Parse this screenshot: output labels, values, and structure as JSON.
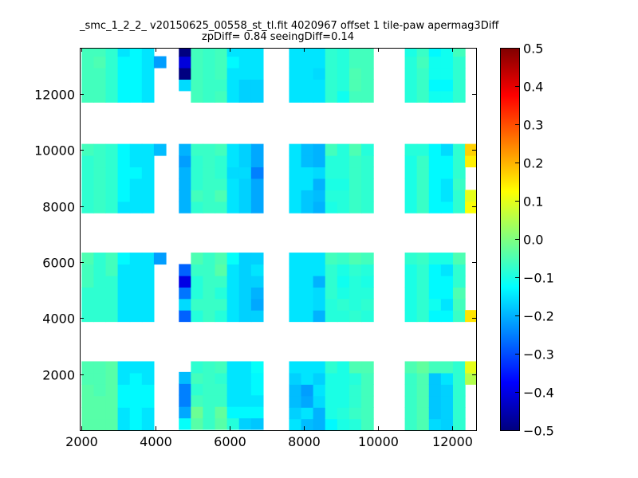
{
  "chart_data": {
    "type": "heatmap",
    "title": "_smc_1_2_2_ v20150625_00558_st_tl.fit 4020967 offset 1 tile-paw apermag3Diff",
    "subtitle": "zpDiff= 0.84 seeingDiff=0.14",
    "xlabel": "",
    "ylabel": "",
    "xlim": [
      1950,
      12650
    ],
    "ylim": [
      0,
      13650
    ],
    "xticks": [
      2000,
      4000,
      6000,
      8000,
      10000,
      12000
    ],
    "yticks": [
      2000,
      4000,
      6000,
      8000,
      10000,
      12000
    ],
    "grid": false,
    "colormap": "jet",
    "colorbar": {
      "vmin": -0.5,
      "vmax": 0.5,
      "ticks": [
        -0.5,
        -0.4,
        -0.3,
        -0.2,
        -0.1,
        0.0,
        0.1,
        0.2,
        0.3,
        0.4,
        0.5
      ],
      "tick_labels": [
        "−0.5",
        "−0.4",
        "−0.3",
        "−0.2",
        "−0.1",
        "0.0",
        "0.1",
        "0.2",
        "0.3",
        "0.4",
        "0.5"
      ]
    },
    "cell_size": [
      325,
      410
    ],
    "column_x": [
      2000,
      2325,
      2650,
      2975,
      3300,
      3625,
      3950,
      4625,
      4950,
      5275,
      5600,
      5925,
      6250,
      6575,
      7600,
      7925,
      8250,
      8575,
      8900,
      9225,
      9550,
      10725,
      11050,
      11375,
      11700,
      12025,
      12350
    ],
    "row_y": [
      [
        0,
        410,
        820,
        1230,
        1640,
        2050,
        3880,
        4290,
        4700,
        5110,
        5520,
        5930,
        7760,
        8170,
        8580,
        8990,
        9400,
        9810,
        11710,
        12120,
        12530,
        12940,
        13350
      ],
      [
        0,
        410,
        820,
        1230,
        1640,
        2050,
        3880,
        4290,
        4700,
        5110,
        5520,
        5930,
        7760,
        8170,
        8580,
        8990,
        9400,
        9810,
        11710,
        12120,
        12530,
        12940,
        13350
      ],
      [
        0,
        410,
        820,
        1230,
        1640,
        2050,
        3880,
        4290,
        4700,
        5110,
        5520,
        5930,
        7760,
        8170,
        8580,
        8990,
        9400,
        9810,
        11710,
        12120,
        12530,
        12940,
        13350
      ],
      [
        0,
        410,
        820,
        1230,
        1640,
        2050,
        3880,
        4290,
        4700,
        5110,
        5520,
        5930,
        7760,
        8170,
        8580,
        8990,
        9400,
        9810,
        11710,
        12120,
        12530,
        12940,
        13350
      ],
      [
        0,
        410,
        820,
        1230,
        1640,
        2050,
        3880,
        4290,
        4700,
        5110,
        5520,
        5930,
        7760,
        8170,
        8580,
        8990,
        9400,
        9810,
        11710,
        12120,
        12530,
        12940,
        13350
      ],
      [
        0,
        410,
        820,
        1230,
        1640,
        2050,
        3880,
        4290,
        4700,
        5110,
        5520,
        5930,
        7760,
        8170,
        8580,
        8990,
        9400,
        9810,
        11710,
        12120,
        12530,
        12940,
        13350
      ],
      [
        null,
        null,
        null,
        null,
        null,
        null,
        null,
        null,
        null,
        null,
        null,
        5930,
        null,
        null,
        null,
        null,
        null,
        9810,
        12940
      ],
      [
        30,
        440,
        850,
        1260,
        1670,
        null,
        3880,
        4290,
        4700,
        5110,
        5520,
        5930,
        7760,
        8170,
        8580,
        8990,
        9400,
        9810,
        12120,
        12530,
        12940,
        13350
      ],
      [
        30,
        440,
        850,
        1260,
        1670,
        2050,
        3880,
        4290,
        4700,
        5110,
        5520,
        5930,
        7760,
        8170,
        8580,
        8990,
        9400,
        9810,
        11710,
        12120,
        12530,
        12940,
        13350
      ],
      [
        30,
        440,
        850,
        1260,
        1670,
        2050,
        3880,
        4290,
        4700,
        5110,
        5520,
        5930,
        7760,
        8170,
        8580,
        8990,
        9400,
        9810,
        11710,
        12120,
        12530,
        12940,
        13350
      ],
      [
        30,
        440,
        850,
        1260,
        1670,
        2050,
        3880,
        4290,
        4700,
        5110,
        5520,
        5930,
        7760,
        8170,
        8580,
        8990,
        9400,
        9810,
        11710,
        12120,
        12530,
        12940,
        13350
      ],
      [
        30,
        440,
        850,
        1260,
        1670,
        2050,
        3880,
        4290,
        4700,
        5110,
        5520,
        5930,
        7760,
        8170,
        8580,
        8990,
        9400,
        9810,
        11710,
        12120,
        12530,
        12940,
        13350
      ],
      [
        30,
        440,
        850,
        1260,
        1670,
        2050,
        3880,
        4290,
        4700,
        5110,
        5520,
        5930,
        7760,
        8170,
        8580,
        8990,
        9400,
        9810,
        11710,
        12120,
        12530,
        12940,
        13350
      ],
      [
        30,
        440,
        850,
        1260,
        1670,
        2050,
        3880,
        4290,
        4700,
        5110,
        5520,
        5930,
        7760,
        8170,
        8580,
        8990,
        9400,
        9810,
        11710,
        12120,
        12530,
        12940,
        13350
      ],
      [
        0,
        410,
        820,
        1230,
        1640,
        2050,
        3880,
        4290,
        4700,
        5110,
        5520,
        5930,
        7760,
        8170,
        8580,
        8990,
        9400,
        9810,
        11710,
        12120,
        12530,
        12940,
        13350
      ],
      [
        0,
        410,
        820,
        1230,
        1640,
        2050,
        3880,
        4290,
        4700,
        5110,
        5520,
        5930,
        7760,
        8170,
        8580,
        8990,
        9400,
        9810,
        11710,
        12120,
        12530,
        12940,
        13350
      ],
      [
        0,
        410,
        820,
        1230,
        1640,
        2050,
        3880,
        4290,
        4700,
        5110,
        5520,
        5930,
        7760,
        8170,
        8580,
        8990,
        9400,
        9810,
        11710,
        12120,
        12530,
        12940,
        13350
      ],
      [
        0,
        410,
        820,
        1230,
        1640,
        2050,
        3880,
        4290,
        4700,
        5110,
        5520,
        5930,
        7760,
        8170,
        8580,
        8990,
        9400,
        9810,
        11710,
        12120,
        12530,
        12940,
        13350
      ],
      [
        0,
        410,
        820,
        1230,
        1640,
        2050,
        3880,
        4290,
        4700,
        5110,
        5520,
        5930,
        7760,
        8170,
        8580,
        8990,
        9400,
        9810,
        11710,
        12120,
        12530,
        12940,
        13350
      ],
      [
        0,
        410,
        820,
        1230,
        1640,
        2050,
        3880,
        4290,
        4700,
        5110,
        5520,
        5930,
        7760,
        8170,
        8580,
        8990,
        9400,
        9810,
        11710,
        12120,
        12530,
        12940,
        13350
      ],
      [
        0,
        410,
        820,
        1230,
        1640,
        2050,
        3880,
        4290,
        4700,
        5110,
        5520,
        5930,
        7760,
        8170,
        8580,
        8990,
        9400,
        9810,
        11710,
        12120,
        12530,
        12940,
        13350
      ],
      [
        0,
        410,
        820,
        1230,
        1640,
        2050,
        3880,
        4290,
        4700,
        5110,
        5520,
        5930,
        7760,
        8170,
        8580,
        8990,
        9400,
        9810,
        11710,
        12120,
        12530,
        12940,
        13350
      ],
      [
        0,
        410,
        820,
        1230,
        1640,
        2050,
        3880,
        4290,
        4700,
        5110,
        5520,
        5930,
        7760,
        8170,
        8580,
        8990,
        9400,
        9810,
        11710,
        12120,
        12530,
        12940,
        13350
      ],
      [
        0,
        410,
        820,
        1230,
        1640,
        2050,
        3880,
        4290,
        4700,
        5110,
        5520,
        5930,
        7760,
        8170,
        8580,
        8990,
        9400,
        9810,
        11710,
        12120,
        12530,
        12940,
        13350
      ],
      [
        0,
        410,
        820,
        1230,
        1640,
        2050,
        3880,
        4290,
        4700,
        5110,
        5520,
        5930,
        7760,
        8170,
        8580,
        8990,
        9400,
        9810,
        11710,
        12120,
        12530,
        12940,
        13350
      ],
      [
        0,
        410,
        820,
        1230,
        1640,
        2050,
        3880,
        4290,
        4700,
        5110,
        5520,
        5930,
        7760,
        8170,
        8580,
        8990,
        9400,
        9810,
        11710,
        12120,
        12530,
        12940,
        13350
      ],
      [
        null,
        null,
        null,
        null,
        1640,
        2050,
        3880,
        null,
        null,
        null,
        null,
        null,
        7760,
        8170,
        null,
        9400,
        9810
      ]
    ],
    "values": [
      [
        -0.04,
        -0.04,
        -0.04,
        -0.04,
        -0.05,
        -0.05,
        -0.08,
        -0.08,
        -0.08,
        -0.06,
        -0.06,
        -0.05,
        -0.08,
        -0.08,
        -0.08,
        -0.08,
        -0.08,
        -0.06,
        -0.06,
        -0.06,
        -0.06,
        -0.06,
        -0.06
      ],
      [
        -0.04,
        -0.04,
        -0.04,
        -0.05,
        -0.05,
        -0.05,
        -0.08,
        -0.08,
        -0.08,
        -0.08,
        -0.08,
        -0.08,
        -0.07,
        -0.07,
        -0.07,
        -0.07,
        -0.07,
        -0.07,
        -0.06,
        -0.06,
        -0.06,
        -0.05,
        -0.06
      ],
      [
        -0.04,
        -0.04,
        -0.04,
        -0.04,
        -0.04,
        -0.04,
        -0.08,
        -0.08,
        -0.08,
        -0.08,
        -0.06,
        -0.06,
        -0.08,
        -0.08,
        -0.08,
        -0.08,
        -0.08,
        -0.08,
        -0.08,
        -0.08,
        -0.08,
        -0.08,
        -0.08
      ],
      [
        -0.15,
        -0.15,
        -0.13,
        -0.13,
        -0.15,
        -0.15,
        -0.15,
        -0.15,
        -0.15,
        -0.15,
        -0.15,
        -0.13,
        -0.15,
        -0.13,
        -0.13,
        -0.13,
        -0.13,
        -0.13,
        -0.13,
        -0.13,
        -0.13,
        -0.13,
        -0.15
      ],
      [
        -0.13,
        -0.13,
        -0.13,
        -0.13,
        -0.13,
        -0.15,
        -0.15,
        -0.15,
        -0.15,
        -0.15,
        -0.15,
        -0.15,
        -0.15,
        -0.15,
        -0.15,
        -0.13,
        -0.15,
        -0.15,
        -0.13,
        -0.13,
        -0.13,
        -0.13,
        -0.13
      ],
      [
        -0.15,
        -0.15,
        -0.13,
        -0.13,
        -0.15,
        -0.15,
        -0.15,
        -0.15,
        -0.15,
        -0.15,
        -0.15,
        -0.15,
        -0.15,
        -0.15,
        -0.15,
        -0.15,
        -0.15,
        -0.15,
        -0.15,
        -0.15,
        -0.15,
        -0.15,
        -0.15
      ],
      [
        null,
        null,
        null,
        null,
        null,
        null,
        null,
        null,
        null,
        null,
        null,
        -0.22,
        null,
        null,
        null,
        null,
        null,
        -0.19,
        -0.22
      ],
      [
        -0.12,
        -0.21,
        -0.25,
        -0.25,
        -0.19,
        null,
        -0.28,
        -0.16,
        -0.26,
        -0.4,
        -0.28,
        null,
        -0.2,
        -0.2,
        -0.2,
        -0.2,
        -0.22,
        -0.2,
        -0.16,
        -0.5,
        -0.41,
        -0.5,
        -0.41
      ],
      [
        -0.04,
        -0.02,
        -0.06,
        -0.08,
        -0.06,
        -0.08,
        -0.09,
        -0.07,
        -0.09,
        -0.09,
        -0.07,
        -0.05,
        -0.08,
        -0.06,
        -0.08,
        -0.08,
        -0.08,
        -0.07,
        -0.06,
        -0.06,
        -0.06,
        -0.06,
        -0.06
      ],
      [
        -0.07,
        -0.07,
        -0.07,
        -0.07,
        -0.07,
        -0.07,
        -0.07,
        -0.07,
        -0.07,
        -0.07,
        -0.07,
        -0.07,
        -0.07,
        -0.07,
        -0.07,
        -0.07,
        -0.07,
        -0.07,
        -0.07,
        -0.07,
        -0.07,
        -0.07,
        -0.07
      ],
      [
        -0.04,
        -0.03,
        -0.07,
        -0.07,
        -0.08,
        -0.06,
        -0.09,
        -0.07,
        -0.09,
        -0.07,
        -0.04,
        -0.05,
        -0.07,
        -0.05,
        -0.07,
        -0.08,
        -0.08,
        -0.06,
        -0.06,
        -0.07,
        -0.06,
        -0.06,
        -0.06
      ],
      [
        -0.09,
        -0.13,
        -0.15,
        -0.15,
        -0.15,
        -0.15,
        -0.15,
        -0.15,
        -0.15,
        -0.15,
        -0.15,
        -0.12,
        -0.15,
        -0.15,
        -0.15,
        -0.16,
        -0.15,
        -0.15,
        -0.15,
        -0.15,
        -0.15,
        -0.13,
        -0.15
      ],
      [
        -0.17,
        -0.13,
        -0.15,
        -0.15,
        -0.15,
        -0.15,
        -0.17,
        -0.17,
        -0.17,
        -0.17,
        -0.17,
        -0.17,
        -0.17,
        -0.17,
        -0.17,
        -0.16,
        -0.17,
        -0.17,
        -0.17,
        -0.17,
        -0.15,
        -0.15,
        -0.15
      ],
      [
        -0.18,
        -0.13,
        -0.15,
        -0.13,
        -0.13,
        -0.12,
        -0.17,
        -0.21,
        -0.2,
        -0.17,
        -0.15,
        -0.17,
        -0.21,
        -0.21,
        -0.21,
        -0.25,
        -0.21,
        -0.21,
        -0.17,
        -0.17,
        -0.15,
        -0.15,
        -0.15
      ],
      [
        -0.15,
        -0.17,
        -0.19,
        -0.19,
        -0.17,
        -0.15,
        -0.15,
        -0.15,
        -0.15,
        -0.15,
        -0.15,
        -0.15,
        -0.15,
        -0.15,
        -0.15,
        -0.15,
        -0.15,
        -0.15,
        -0.15,
        -0.15,
        -0.15,
        -0.15,
        -0.15
      ],
      [
        -0.19,
        -0.15,
        -0.21,
        -0.22,
        -0.15,
        -0.15,
        -0.15,
        -0.15,
        -0.15,
        -0.15,
        -0.15,
        -0.15,
        -0.18,
        -0.18,
        -0.15,
        -0.15,
        -0.19,
        -0.19,
        -0.15,
        -0.15,
        -0.15,
        -0.15,
        -0.15
      ],
      [
        -0.2,
        -0.2,
        -0.16,
        -0.15,
        -0.17,
        -0.15,
        -0.2,
        -0.16,
        -0.16,
        -0.2,
        -0.15,
        -0.15,
        -0.2,
        -0.19,
        -0.2,
        -0.16,
        -0.2,
        -0.2,
        -0.15,
        -0.15,
        -0.16,
        -0.15,
        -0.15
      ],
      [
        -0.13,
        -0.1,
        -0.1,
        -0.1,
        -0.1,
        -0.08,
        -0.09,
        -0.09,
        -0.08,
        -0.08,
        -0.08,
        -0.06,
        -0.1,
        -0.09,
        -0.1,
        -0.09,
        -0.09,
        -0.06,
        -0.08,
        -0.08,
        -0.08,
        -0.08,
        -0.08
      ],
      [
        -0.1,
        -0.09,
        -0.1,
        -0.1,
        -0.1,
        -0.1,
        -0.09,
        -0.08,
        -0.1,
        -0.11,
        -0.1,
        -0.07,
        -0.09,
        -0.09,
        -0.1,
        -0.09,
        -0.09,
        -0.09,
        -0.11,
        -0.09,
        -0.09,
        -0.09,
        -0.09
      ],
      [
        -0.09,
        -0.07,
        -0.08,
        -0.08,
        -0.09,
        -0.05,
        -0.08,
        -0.09,
        -0.09,
        -0.09,
        -0.08,
        -0.05,
        -0.07,
        -0.07,
        -0.07,
        -0.07,
        -0.07,
        -0.05,
        -0.06,
        -0.05,
        -0.05,
        -0.06,
        -0.06
      ],
      [
        -0.06,
        -0.06,
        -0.06,
        -0.06,
        -0.06,
        -0.05,
        -0.09,
        -0.08,
        -0.09,
        -0.1,
        -0.09,
        -0.06,
        -0.08,
        -0.08,
        -0.08,
        -0.08,
        -0.08,
        -0.09,
        -0.06,
        -0.06,
        -0.06,
        -0.06,
        -0.06
      ],
      [
        -0.07,
        -0.07,
        -0.07,
        -0.07,
        -0.07,
        -0.05,
        -0.1,
        -0.1,
        -0.1,
        -0.1,
        -0.1,
        -0.08,
        -0.1,
        -0.1,
        -0.1,
        -0.1,
        -0.1,
        -0.09,
        -0.09,
        -0.09,
        -0.09,
        -0.09,
        -0.1
      ],
      [
        -0.05,
        -0.05,
        -0.05,
        -0.05,
        -0.05,
        -0.03,
        -0.08,
        -0.08,
        -0.08,
        -0.08,
        -0.08,
        -0.07,
        -0.07,
        -0.07,
        -0.07,
        -0.07,
        -0.07,
        -0.09,
        -0.07,
        -0.07,
        -0.07,
        -0.06,
        -0.07
      ],
      [
        -0.16,
        -0.18,
        -0.18,
        -0.18,
        -0.18,
        -0.06,
        -0.13,
        -0.11,
        -0.13,
        -0.13,
        -0.13,
        -0.1,
        -0.13,
        -0.13,
        -0.13,
        -0.13,
        -0.13,
        -0.13,
        -0.11,
        -0.13,
        -0.11,
        -0.11,
        -0.13
      ],
      [
        -0.17,
        -0.17,
        -0.17,
        -0.17,
        -0.15,
        -0.06,
        -0.13,
        -0.15,
        -0.13,
        -0.13,
        -0.15,
        -0.1,
        -0.13,
        -0.15,
        -0.15,
        -0.13,
        -0.13,
        -0.16,
        -0.11,
        -0.13,
        -0.11,
        -0.11,
        -0.11
      ],
      [
        -0.08,
        -0.08,
        -0.08,
        -0.08,
        -0.08,
        -0.08,
        -0.07,
        -0.06,
        -0.05,
        -0.08,
        -0.08,
        -0.05,
        -0.08,
        -0.08,
        -0.07,
        -0.08,
        -0.08,
        -0.08,
        -0.08,
        -0.08,
        -0.08,
        -0.08,
        -0.06
      ],
      [
        null,
        null,
        null,
        null,
        0.05,
        0.1,
        0.15,
        null,
        null,
        null,
        null,
        null,
        0.12,
        0.1,
        null,
        0.14,
        0.17
      ]
    ]
  }
}
